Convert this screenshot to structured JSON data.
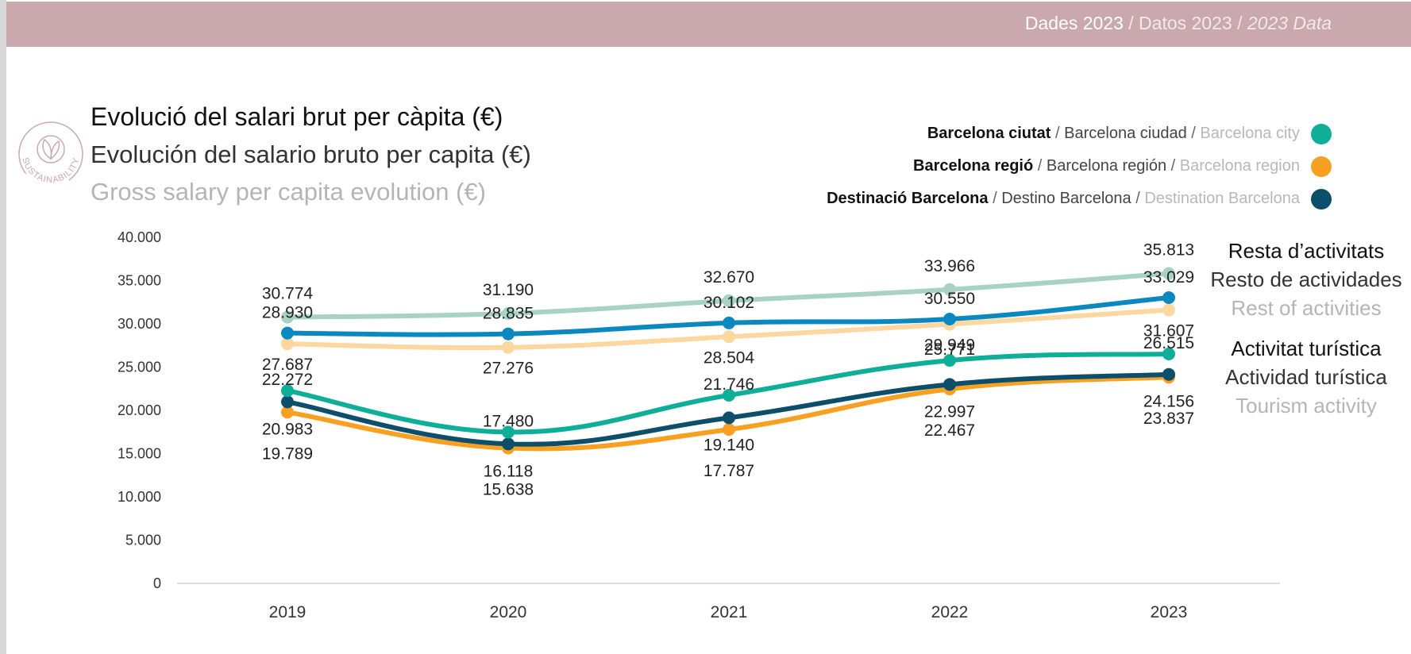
{
  "header": {
    "ca": "Dades 2023",
    "es": " / Datos 2023 / ",
    "en": "2023 Data"
  },
  "logo": {
    "icon": "leaf-icon",
    "text": "SUSTAINABILITY",
    "color": "#c9a9ad"
  },
  "title": {
    "ca": "Evolució del salari brut per càpita (€)",
    "es": "Evolución del salario bruto per capita (€)",
    "en": "Gross salary per capita evolution (€)"
  },
  "legend": [
    {
      "ca": "Barcelona ciutat",
      "es": "Barcelona ciudad",
      "en": "Barcelona city",
      "color": "#0fae98"
    },
    {
      "ca": "Barcelona regió",
      "es": "Barcelona región",
      "en": "Barcelona region",
      "color": "#f7a021"
    },
    {
      "ca": "Destinació Barcelona",
      "es": "Destino Barcelona",
      "en": "Destination Barcelona",
      "color": "#0d4f6a"
    }
  ],
  "groups": {
    "rest": {
      "ca": "Resta d’activitats",
      "es": "Resto de actividades",
      "en": "Rest of activities"
    },
    "tourism": {
      "ca": "Activitat turística",
      "es": "Actividad turística",
      "en": "Tourism activity"
    }
  },
  "chart_data": {
    "type": "line",
    "categories": [
      "2019",
      "2020",
      "2021",
      "2022",
      "2023"
    ],
    "ylim": [
      0,
      40000
    ],
    "yticks": [
      "0",
      "5.000",
      "10.000",
      "15.000",
      "20.000",
      "25.000",
      "30.000",
      "35.000",
      "40.000"
    ],
    "series": [
      {
        "group": "rest",
        "color": "#a8d2c2",
        "values": [
          30774,
          31190,
          32670,
          33966,
          35813
        ],
        "labels": [
          "30.774",
          "31.190",
          "32.670",
          "33.966",
          "35.813"
        ]
      },
      {
        "group": "rest",
        "color": "#0a88bf",
        "values": [
          28930,
          28835,
          30102,
          30550,
          33029
        ],
        "labels": [
          "28.930",
          "28.835",
          "30.102",
          "30.550",
          "33.029"
        ]
      },
      {
        "group": "rest",
        "color": "#fcd79f",
        "values": [
          27687,
          27276,
          28504,
          29949,
          31607
        ],
        "labels": [
          "27.687",
          "27.276",
          "28.504",
          "29.949",
          "31.607"
        ]
      },
      {
        "group": "tourism",
        "color": "#0fae98",
        "values": [
          22272,
          17480,
          21746,
          25771,
          26515
        ],
        "labels": [
          "22.272",
          "17.480",
          "21.746",
          "25.771",
          "26.515"
        ]
      },
      {
        "group": "tourism",
        "color": "#0d4f6a",
        "values": [
          20983,
          16118,
          19140,
          22997,
          24156
        ],
        "labels": [
          "20.983",
          "16.118",
          "19.140",
          "22.997",
          "24.156"
        ]
      },
      {
        "group": "tourism",
        "color": "#f7a021",
        "values": [
          19789,
          15638,
          17787,
          22467,
          23837
        ],
        "labels": [
          "19.789",
          "15.638",
          "17.787",
          "22.467",
          "23.837"
        ]
      }
    ]
  }
}
